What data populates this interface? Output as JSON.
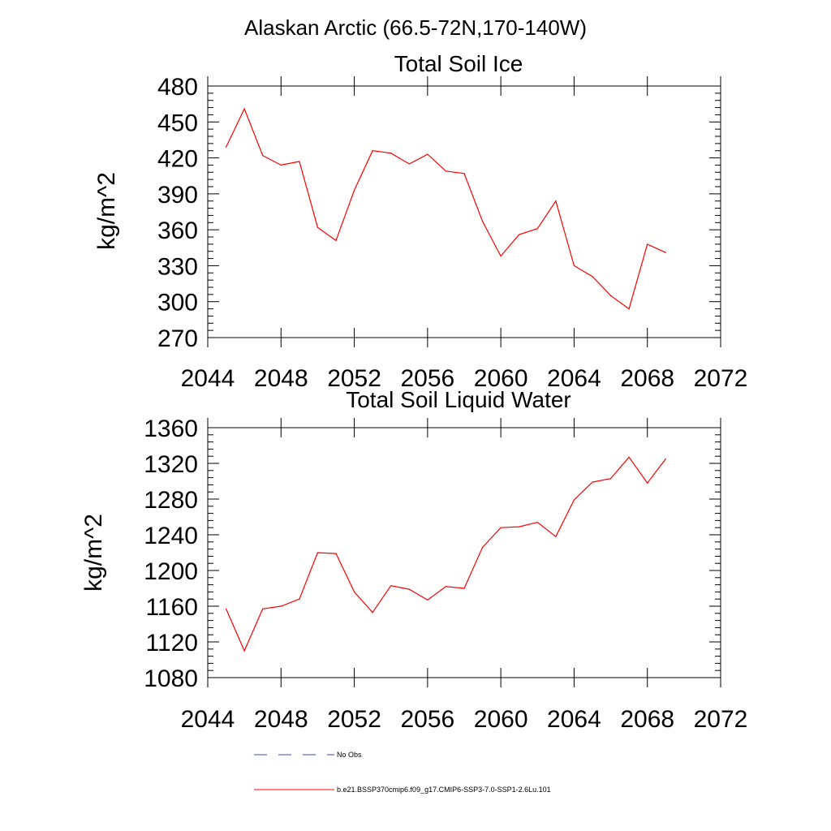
{
  "page_title": "Alaskan Arctic (66.5-72N,170-140W)",
  "colors": {
    "model_line": "#ff0000",
    "obs_line": "#3b4ba8",
    "axis": "#000000"
  },
  "legend": {
    "obs_label": "No Obs",
    "model_label": "b.e21.BSSP370cmip6.f09_g17.CMIP6-SSP3-7.0-SSP1-2.6Lu.101"
  },
  "chart_data": [
    {
      "type": "line",
      "title": "Total Soil Ice",
      "ylabel": "kg/m^2",
      "xlabel": "",
      "xlim": [
        2044,
        2072
      ],
      "ylim": [
        270,
        480
      ],
      "xticks": [
        2044,
        2048,
        2052,
        2056,
        2060,
        2064,
        2068,
        2072
      ],
      "yticks": [
        270,
        300,
        330,
        360,
        390,
        420,
        450,
        480
      ],
      "grid": false,
      "series": [
        {
          "name": "b.e21.BSSP370cmip6.f09_g17.CMIP6-SSP3-7.0-SSP1-2.6Lu.101",
          "x": [
            2045,
            2046,
            2047,
            2048,
            2049,
            2050,
            2051,
            2052,
            2053,
            2054,
            2055,
            2056,
            2057,
            2058,
            2059,
            2060,
            2061,
            2062,
            2063,
            2064,
            2065,
            2066,
            2067,
            2068,
            2069
          ],
          "values": [
            429,
            461,
            422,
            414,
            417,
            362,
            351,
            393,
            426,
            424,
            415,
            423,
            409,
            407,
            367,
            338,
            356,
            361,
            384,
            330,
            321,
            305,
            294,
            348,
            341
          ]
        }
      ]
    },
    {
      "type": "line",
      "title": "Total Soil Liquid Water",
      "ylabel": "kg/m^2",
      "xlabel": "",
      "xlim": [
        2044,
        2072
      ],
      "ylim": [
        1080,
        1360
      ],
      "xticks": [
        2044,
        2048,
        2052,
        2056,
        2060,
        2064,
        2068,
        2072
      ],
      "yticks": [
        1080,
        1120,
        1160,
        1200,
        1240,
        1280,
        1320,
        1360
      ],
      "grid": false,
      "series": [
        {
          "name": "b.e21.BSSP370cmip6.f09_g17.CMIP6-SSP3-7.0-SSP1-2.6Lu.101",
          "x": [
            2045,
            2046,
            2047,
            2048,
            2049,
            2050,
            2051,
            2052,
            2053,
            2054,
            2055,
            2056,
            2057,
            2058,
            2059,
            2060,
            2061,
            2062,
            2063,
            2064,
            2065,
            2066,
            2067,
            2068,
            2069
          ],
          "values": [
            1157,
            1110,
            1157,
            1160,
            1168,
            1220,
            1219,
            1176,
            1153,
            1183,
            1179,
            1167,
            1182,
            1180,
            1226,
            1248,
            1249,
            1254,
            1238,
            1279,
            1299,
            1303,
            1327,
            1298,
            1325
          ]
        }
      ]
    }
  ]
}
